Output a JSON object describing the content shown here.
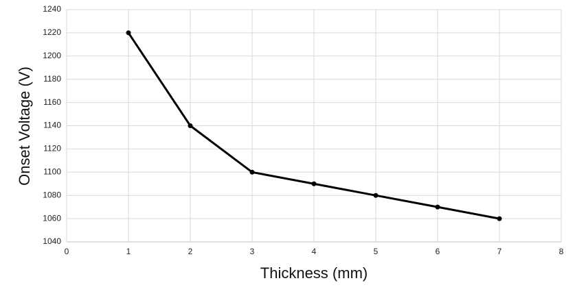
{
  "chart_data": {
    "type": "line",
    "x_label": "Thickness (mm)",
    "y_label": "Onset Voltage (V)",
    "x": [
      1,
      2,
      3,
      4,
      5,
      6,
      7
    ],
    "series": [
      {
        "color": "#000000",
        "values": [
          1220,
          1140,
          1100,
          1090,
          1080,
          1070,
          1060
        ]
      }
    ],
    "xlim": [
      0,
      8
    ],
    "xticks": [
      0,
      1,
      2,
      3,
      4,
      5,
      6,
      7,
      8
    ],
    "ylim": [
      1040,
      1240
    ],
    "yticks": [
      1040,
      1060,
      1080,
      1100,
      1120,
      1140,
      1160,
      1180,
      1200,
      1220,
      1240
    ],
    "grid": true
  }
}
